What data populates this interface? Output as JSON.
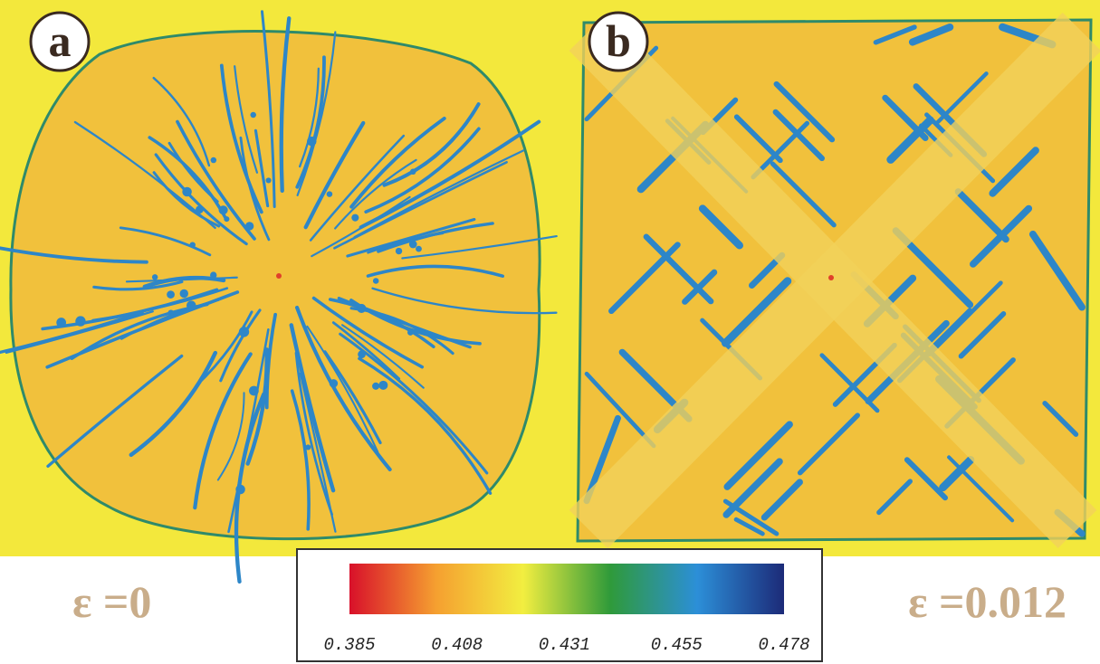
{
  "panels": [
    {
      "label": "a",
      "caption": "ε =0"
    },
    {
      "label": "b",
      "caption": "ε =0.012"
    }
  ],
  "colorbar": {
    "ticks": [
      0.385,
      0.408,
      0.431,
      0.455,
      0.478
    ],
    "colors": [
      "#d8102a",
      "#f5a030",
      "#f2ee40",
      "#2f9a3a",
      "#2c8fd8",
      "#1c2a78"
    ]
  }
}
